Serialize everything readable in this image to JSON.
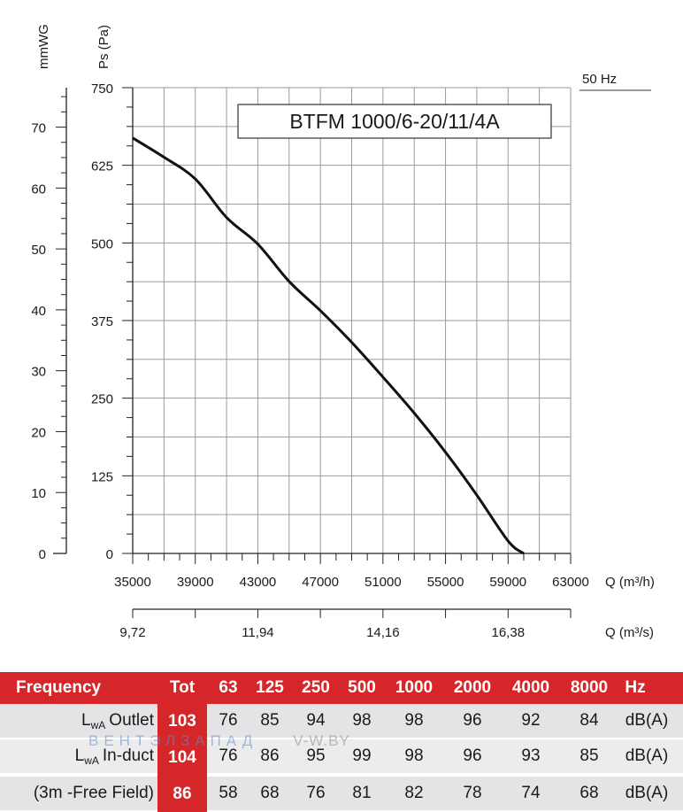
{
  "frequency_label": "50 Hz",
  "chart_data": {
    "type": "line",
    "title": "BTFM 1000/6-20/11/4A",
    "xlabel": "Q (m³/h)",
    "xlabel2": "Q (m³/s)",
    "ylabel": "Ps (Pa)",
    "ylabel2": "mmWG",
    "xlim": [
      35000,
      63000
    ],
    "ylim": [
      0,
      750
    ],
    "x_ticks": [
      "35000",
      "39000",
      "43000",
      "47000",
      "51000",
      "55000",
      "59000",
      "63000"
    ],
    "x_ticks_values": [
      35000,
      39000,
      43000,
      47000,
      51000,
      55000,
      59000,
      63000
    ],
    "y_ticks": [
      "0",
      "125",
      "250",
      "375",
      "500",
      "625",
      "750"
    ],
    "y_ticks_values": [
      0,
      125,
      250,
      375,
      500,
      625,
      750
    ],
    "x2_ticks": [
      "9,72",
      "11,94",
      "14,16",
      "16,38"
    ],
    "x2_ticks_values": [
      35000,
      43000,
      51000,
      59000
    ],
    "y2_ticks": [
      "0",
      "10",
      "20",
      "30",
      "40",
      "50",
      "60",
      "70"
    ],
    "y2_ticks_values": [
      0,
      10,
      20,
      30,
      40,
      50,
      60,
      70
    ],
    "grid": true,
    "series": [
      {
        "color": "#111111",
        "x": [
          35000,
          37000,
          39000,
          41000,
          43000,
          45000,
          47000,
          49000,
          51000,
          53000,
          55000,
          57000,
          59000,
          60000
        ],
        "y": [
          669,
          638,
          603,
          541,
          498,
          438,
          391,
          340,
          284,
          226,
          163,
          94,
          20,
          0
        ]
      }
    ]
  },
  "table": {
    "headers": [
      "Frequency",
      "Tot",
      "63",
      "125",
      "250",
      "500",
      "1000",
      "2000",
      "4000",
      "8000",
      "Hz"
    ],
    "rows": [
      {
        "prefix": "L",
        "sub": "wA",
        "label": "Outlet",
        "tot": "103",
        "values": [
          "76",
          "85",
          "94",
          "98",
          "98",
          "96",
          "92",
          "84"
        ],
        "unit": "dB(A)"
      },
      {
        "prefix": "L",
        "sub": "wA",
        "label": "In-duct",
        "tot": "104",
        "values": [
          "76",
          "86",
          "95",
          "99",
          "98",
          "96",
          "93",
          "85"
        ],
        "unit": "dB(A)"
      },
      {
        "prefix": "",
        "sub": "",
        "label": "(3m -Free Field)",
        "tot": "86",
        "values": [
          "58",
          "68",
          "76",
          "81",
          "82",
          "78",
          "74",
          "68"
        ],
        "unit": "dB(A)"
      }
    ]
  },
  "watermark": {
    "text": "ВЕНТЭЛЗАПАД",
    "url": "V-W.BY"
  }
}
